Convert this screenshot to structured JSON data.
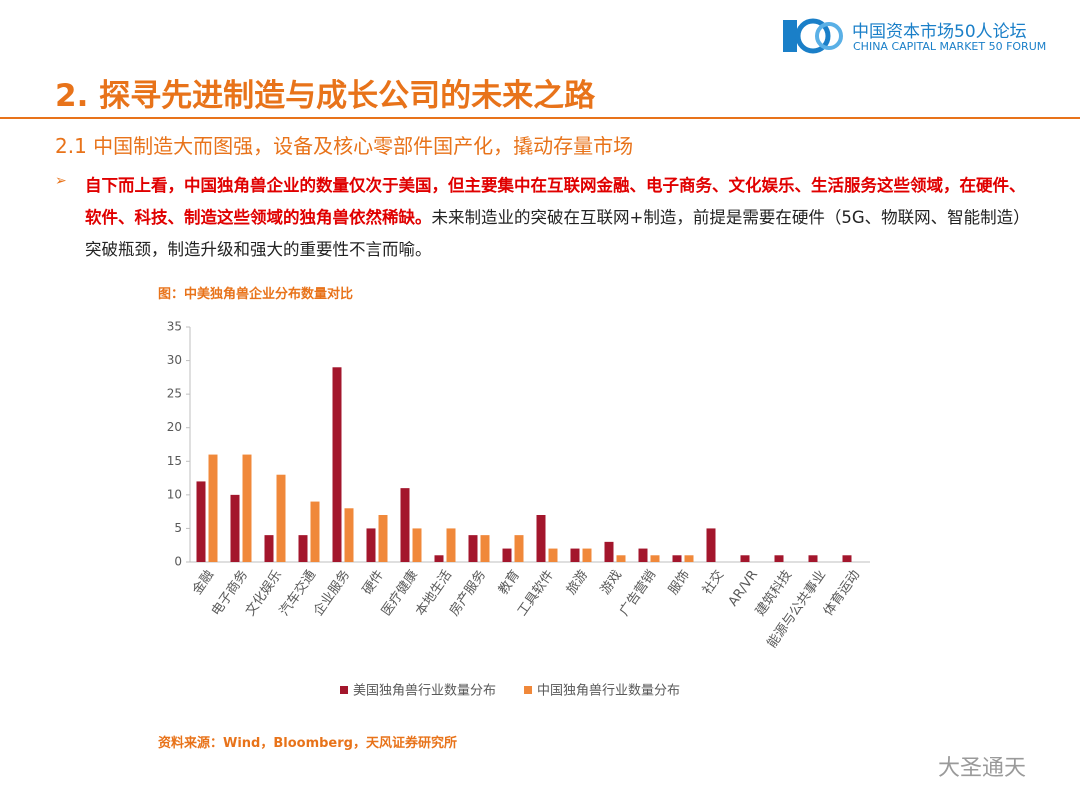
{
  "header": {
    "logo_cn": "中国资本市场50人论坛",
    "logo_en": "CHINA CAPITAL MARKET 50 FORUM",
    "title": "2. 探寻先进制造与成长公司的未来之路",
    "subtitle": "2.1 中国制造大而图强，设备及核心零部件国产化，撬动存量市场"
  },
  "bullet": {
    "marker": "➢",
    "highlight": "自下而上看，中国独角兽企业的数量仅次于美国，但主要集中在互联网金融、电子商务、文化娱乐、生活服务这些领域，在硬件、软件、科技、制造这些领域的独角兽依然稀缺。",
    "text": "未来制造业的突破在互联网+制造，前提是需要在硬件（5G、物联网、智能制造）突破瓶颈，制造升级和强大的重要性不言而喻。"
  },
  "chart_data": {
    "type": "bar",
    "title": "图：中美独角兽企业分布数量对比",
    "categories": [
      "金融",
      "电子商务",
      "文化娱乐",
      "汽车交通",
      "企业服务",
      "硬件",
      "医疗健康",
      "本地生活",
      "房产服务",
      "教育",
      "工具软件",
      "旅游",
      "游戏",
      "广告营销",
      "服饰",
      "社交",
      "AR/VR",
      "建筑科技",
      "能源与公共事业",
      "体育运动"
    ],
    "series": [
      {
        "name": "美国独角兽行业数量分布",
        "color": "#a3162c",
        "values": [
          12,
          10,
          4,
          4,
          29,
          5,
          11,
          1,
          4,
          2,
          7,
          2,
          3,
          2,
          1,
          5,
          1,
          1,
          1,
          1
        ]
      },
      {
        "name": "中国独角兽行业数量分布",
        "color": "#f0883a",
        "values": [
          16,
          16,
          13,
          9,
          8,
          7,
          5,
          5,
          4,
          4,
          2,
          2,
          1,
          1,
          1,
          0,
          0,
          0,
          0,
          0
        ]
      }
    ],
    "ylim": [
      0,
      35
    ],
    "yticks": [
      0,
      5,
      10,
      15,
      20,
      25,
      30,
      35
    ],
    "grid": false,
    "legend": "bottom",
    "source": "资料来源：Wind，Bloomberg，天风证券研究所"
  },
  "watermark": "大圣通天"
}
